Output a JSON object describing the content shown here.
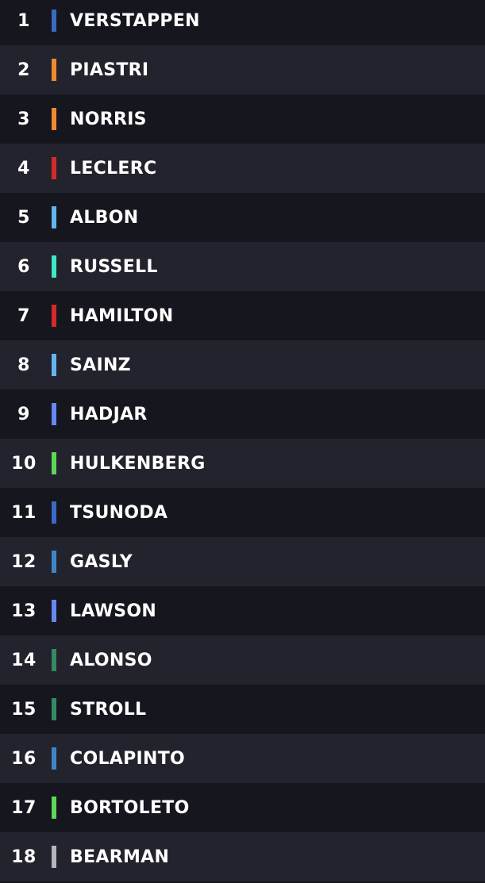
{
  "standings": [
    {
      "position": "1",
      "driver": "VERSTAPPEN",
      "team_color": "#3a6bc4"
    },
    {
      "position": "2",
      "driver": "PIASTRI",
      "team_color": "#f08a30"
    },
    {
      "position": "3",
      "driver": "NORRIS",
      "team_color": "#f08a30"
    },
    {
      "position": "4",
      "driver": "LECLERC",
      "team_color": "#d42a2a"
    },
    {
      "position": "5",
      "driver": "ALBON",
      "team_color": "#64b4f0"
    },
    {
      "position": "6",
      "driver": "RUSSELL",
      "team_color": "#3ee8c8"
    },
    {
      "position": "7",
      "driver": "HAMILTON",
      "team_color": "#d42a2a"
    },
    {
      "position": "8",
      "driver": "SAINZ",
      "team_color": "#64b4f0"
    },
    {
      "position": "9",
      "driver": "HADJAR",
      "team_color": "#6688f0"
    },
    {
      "position": "10",
      "driver": "HULKENBERG",
      "team_color": "#5ed65a"
    },
    {
      "position": "11",
      "driver": "TSUNODA",
      "team_color": "#3a6bc4"
    },
    {
      "position": "12",
      "driver": "GASLY",
      "team_color": "#3d86c8"
    },
    {
      "position": "13",
      "driver": "LAWSON",
      "team_color": "#6688f0"
    },
    {
      "position": "14",
      "driver": "ALONSO",
      "team_color": "#358a62"
    },
    {
      "position": "15",
      "driver": "STROLL",
      "team_color": "#358a62"
    },
    {
      "position": "16",
      "driver": "COLAPINTO",
      "team_color": "#3d86c8"
    },
    {
      "position": "17",
      "driver": "BORTOLETO",
      "team_color": "#5ed65a"
    },
    {
      "position": "18",
      "driver": "BEARMAN",
      "team_color": "#b4b6bc"
    }
  ]
}
